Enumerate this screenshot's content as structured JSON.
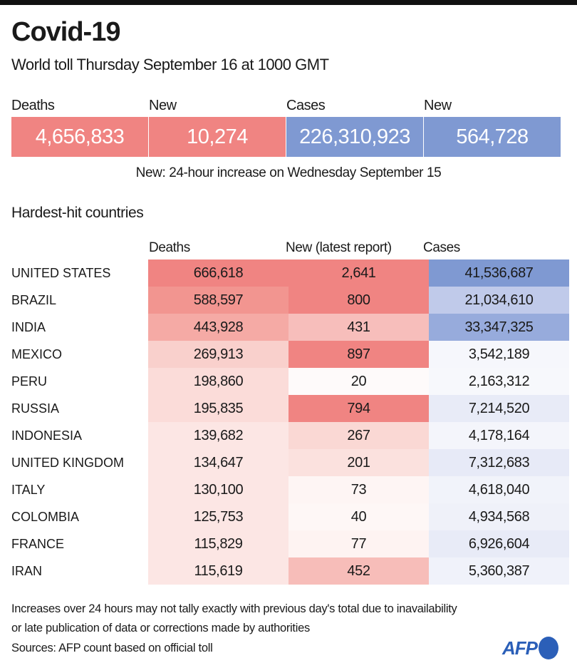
{
  "title": "Covid-19",
  "subtitle": "World toll Thursday September 16 at 1000 GMT",
  "summary": [
    {
      "label": "Deaths",
      "value": "4,656,833",
      "color": "#f08482"
    },
    {
      "label": "New",
      "value": "10,274",
      "color": "#f08482"
    },
    {
      "label": "Cases",
      "value": "226,310,923",
      "color": "#7f99d2"
    },
    {
      "label": "New",
      "value": "564,728",
      "color": "#7f99d2"
    }
  ],
  "summary_note": "New: 24-hour increase on Wednesday September 15",
  "section_title": "Hardest-hit countries",
  "chart_data": {
    "type": "table",
    "title": "Hardest-hit countries",
    "columns": [
      "Deaths",
      "New (latest report)",
      "Cases"
    ],
    "rows": [
      {
        "country": "UNITED STATES",
        "deaths": "666,618",
        "new": "2,641",
        "cases": "41,536,687",
        "colors": [
          "#f08482",
          "#f08482",
          "#7f99d2"
        ]
      },
      {
        "country": "BRAZIL",
        "deaths": "588,597",
        "new": "800",
        "cases": "21,034,610",
        "colors": [
          "#f29590",
          "#f08482",
          "#c0caea"
        ]
      },
      {
        "country": "INDIA",
        "deaths": "443,928",
        "new": "431",
        "cases": "33,347,325",
        "colors": [
          "#f5aaa5",
          "#f7bebb",
          "#97abdc"
        ]
      },
      {
        "country": "MEXICO",
        "deaths": "269,913",
        "new": "897",
        "cases": "3,542,189",
        "colors": [
          "#f9d0cc",
          "#f08482",
          "#f6f7fc"
        ]
      },
      {
        "country": "PERU",
        "deaths": "198,860",
        "new": "20",
        "cases": "2,163,312",
        "colors": [
          "#fbdcd9",
          "#fefafa",
          "#f7f8fc"
        ]
      },
      {
        "country": "RUSSIA",
        "deaths": "195,835",
        "new": "794",
        "cases": "7,214,520",
        "colors": [
          "#fbdcd9",
          "#f08482",
          "#e8ebf7"
        ]
      },
      {
        "country": "INDONESIA",
        "deaths": "139,682",
        "new": "267",
        "cases": "4,178,164",
        "colors": [
          "#fce6e4",
          "#fad8d4",
          "#f4f5fb"
        ]
      },
      {
        "country": "UNITED KINGDOM",
        "deaths": "134,647",
        "new": "201",
        "cases": "7,312,683",
        "colors": [
          "#fce6e4",
          "#fbe1de",
          "#e7eaf7"
        ]
      },
      {
        "country": "ITALY",
        "deaths": "130,100",
        "new": "73",
        "cases": "4,618,040",
        "colors": [
          "#fce6e4",
          "#fef5f4",
          "#f1f3fa"
        ]
      },
      {
        "country": "COLOMBIA",
        "deaths": "125,753",
        "new": "40",
        "cases": "4,934,568",
        "colors": [
          "#fce6e4",
          "#fef7f6",
          "#eff1f9"
        ]
      },
      {
        "country": "FRANCE",
        "deaths": "115,829",
        "new": "77",
        "cases": "6,926,604",
        "colors": [
          "#fce6e4",
          "#fef3f2",
          "#e8ebf7"
        ]
      },
      {
        "country": "IRAN",
        "deaths": "115,619",
        "new": "452",
        "cases": "5,360,387",
        "colors": [
          "#fce6e4",
          "#f7bdb9",
          "#f0f2fa"
        ]
      }
    ]
  },
  "footer": {
    "line1": "Increases over 24 hours may not tally exactly with previous day's total due to inavailability",
    "line2": "or late publication of data or corrections made by authorities",
    "sources": "Sources: AFP count based on official toll",
    "logo": "AFP"
  }
}
